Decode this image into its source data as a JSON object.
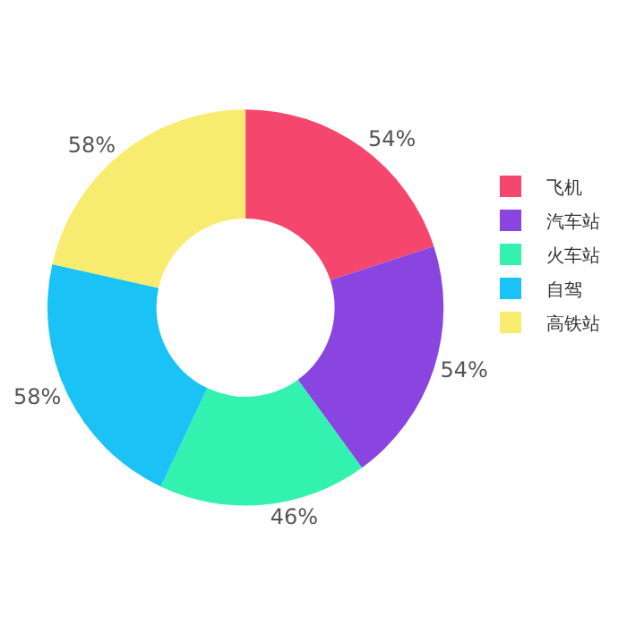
{
  "chart_data": {
    "type": "donut",
    "categories": [
      "飞机",
      "汽车站",
      "火车站",
      "自驾",
      "高铁站"
    ],
    "values": [
      54,
      54,
      46,
      58,
      58
    ],
    "value_labels": [
      "54%",
      "54%",
      "46%",
      "58%",
      "58%"
    ],
    "colors": [
      "#f5476e",
      "#8a45e0",
      "#33f2b0",
      "#1ac2f5",
      "#f7ec70"
    ],
    "legend": "right"
  }
}
